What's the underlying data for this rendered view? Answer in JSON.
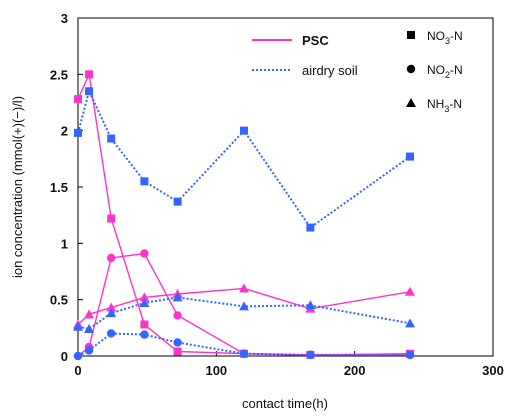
{
  "chart_data": {
    "type": "line",
    "xlabel": "contact time(h)",
    "ylabel": "ion concentration (mmol(+)(−)/l)",
    "xlim": [
      0,
      300
    ],
    "ylim": [
      0,
      3
    ],
    "xticks": [
      0,
      100,
      200,
      300
    ],
    "yticks": [
      0,
      0.5,
      1,
      1.5,
      2,
      2.5,
      3
    ],
    "ytick_labels": [
      "0",
      "0.5",
      "1",
      "1.5",
      "2",
      "2.5",
      "3"
    ],
    "grid": false,
    "legend_position": "top-right",
    "line_legend": [
      {
        "label": "PSC",
        "style": "solid",
        "color": "#ff33cc"
      },
      {
        "label": "airdry soil",
        "style": "dotted",
        "color": "#3366ff"
      }
    ],
    "marker_legend": [
      {
        "label": "NO",
        "sub": "3",
        "suffix": "-N",
        "marker": "square"
      },
      {
        "label": "NO",
        "sub": "2",
        "suffix": "-N",
        "marker": "circle"
      },
      {
        "label": "NH",
        "sub": "3",
        "suffix": "-N",
        "marker": "triangle"
      }
    ],
    "series": [
      {
        "name": "PSC NO3-N",
        "color": "#ff33cc",
        "style": "solid",
        "marker": "square",
        "x": [
          0,
          8,
          24,
          48,
          72,
          120,
          168,
          240
        ],
        "y": [
          2.28,
          2.5,
          1.22,
          0.28,
          0.04,
          0.02,
          0.01,
          0.02
        ]
      },
      {
        "name": "PSC NO2-N",
        "color": "#ff33cc",
        "style": "solid",
        "marker": "circle",
        "x": [
          0,
          8,
          24,
          48,
          72,
          120,
          168,
          240
        ],
        "y": [
          0.0,
          0.08,
          0.87,
          0.91,
          0.36,
          0.02,
          0.01,
          0.01
        ]
      },
      {
        "name": "PSC NH3-N",
        "color": "#ff33cc",
        "style": "solid",
        "marker": "triangle",
        "x": [
          0,
          8,
          24,
          48,
          72,
          120,
          168,
          240
        ],
        "y": [
          0.28,
          0.37,
          0.43,
          0.52,
          0.55,
          0.6,
          0.42,
          0.57
        ]
      },
      {
        "name": "airdry soil NO3-N",
        "color": "#3366ff",
        "style": "dotted",
        "marker": "square",
        "x": [
          0,
          8,
          24,
          48,
          72,
          120,
          168,
          240
        ],
        "y": [
          1.98,
          2.35,
          1.93,
          1.55,
          1.37,
          2.0,
          1.14,
          1.77
        ]
      },
      {
        "name": "airdry soil NO2-N",
        "color": "#3366ff",
        "style": "dotted",
        "marker": "circle",
        "x": [
          0,
          8,
          24,
          48,
          72,
          120,
          168,
          240
        ],
        "y": [
          0.0,
          0.05,
          0.2,
          0.19,
          0.12,
          0.02,
          0.01,
          0.01
        ]
      },
      {
        "name": "airdry soil NH3-N",
        "color": "#3366ff",
        "style": "dotted",
        "marker": "triangle",
        "x": [
          0,
          8,
          24,
          48,
          72,
          120,
          168,
          240
        ],
        "y": [
          0.26,
          0.24,
          0.38,
          0.47,
          0.52,
          0.44,
          0.45,
          0.29
        ]
      }
    ]
  }
}
